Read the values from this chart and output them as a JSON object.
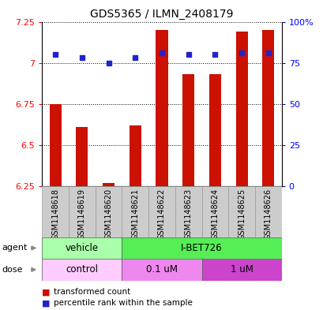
{
  "title": "GDS5365 / ILMN_2408179",
  "samples": [
    "GSM1148618",
    "GSM1148619",
    "GSM1148620",
    "GSM1148621",
    "GSM1148622",
    "GSM1148623",
    "GSM1148624",
    "GSM1148625",
    "GSM1148626"
  ],
  "transformed_counts": [
    6.75,
    6.61,
    6.27,
    6.62,
    7.2,
    6.93,
    6.93,
    7.19,
    7.2
  ],
  "percentile_ranks": [
    80,
    78,
    75,
    78,
    81,
    80,
    80,
    81,
    81
  ],
  "ylim": [
    6.25,
    7.25
  ],
  "yticks": [
    6.25,
    6.5,
    6.75,
    7.0,
    7.25
  ],
  "ytick_labels_left": [
    "6.25",
    "6.5",
    "6.75",
    "7",
    "7.25"
  ],
  "ytick_labels_right": [
    "0",
    "25",
    "50",
    "75",
    "100%"
  ],
  "bar_color": "#cc1100",
  "dot_color": "#2222cc",
  "bar_width": 0.45,
  "agent_labels": [
    {
      "text": "vehicle",
      "start": 0,
      "end": 3,
      "color": "#aaffaa"
    },
    {
      "text": "I-BET726",
      "start": 3,
      "end": 9,
      "color": "#55ee55"
    }
  ],
  "dose_labels": [
    {
      "text": "control",
      "start": 0,
      "end": 3,
      "color": "#ffccff"
    },
    {
      "text": "0.1 uM",
      "start": 3,
      "end": 6,
      "color": "#ee88ee"
    },
    {
      "text": "1 uM",
      "start": 6,
      "end": 9,
      "color": "#cc44cc"
    }
  ],
  "legend_items": [
    {
      "label": "transformed count",
      "color": "#cc1100"
    },
    {
      "label": "percentile rank within the sample",
      "color": "#2222cc"
    }
  ],
  "sample_box_color": "#cccccc",
  "sample_box_edge": "#999999"
}
